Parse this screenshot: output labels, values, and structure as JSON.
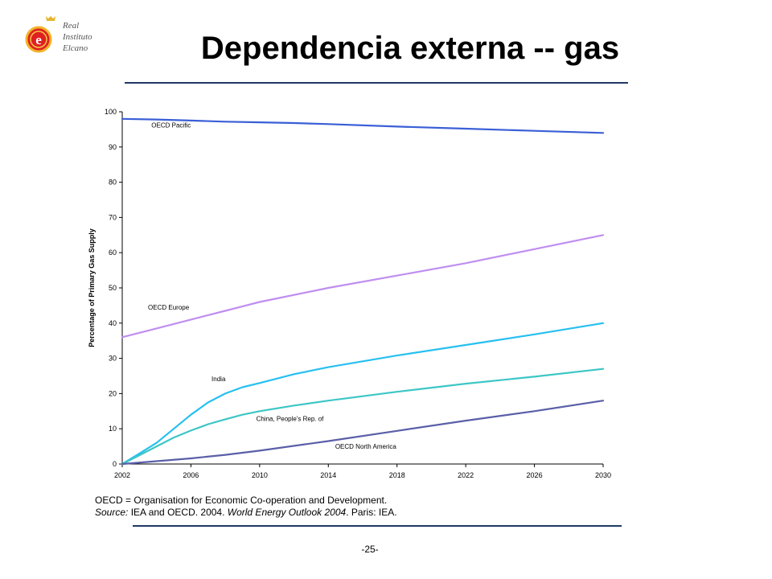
{
  "logo": {
    "line1": "Real",
    "line2": "Instituto",
    "line3": "Elcano",
    "letter": "e"
  },
  "slide": {
    "title": "Dependencia externa -- gas",
    "page_number": "-25-"
  },
  "notes": {
    "definition": "OECD = Organisation for Economic Co-operation and Development.",
    "source_label": "Source:",
    "source_text_a": " IEA and OECD. 2004. ",
    "source_title": "World Energy Outlook 2004",
    "source_text_b": ". Paris: IEA."
  },
  "chart_data": {
    "type": "line",
    "ylabel": "Percentage of Primary Gas Supply",
    "xlabel": "",
    "xlim": [
      2002,
      2030
    ],
    "ylim": [
      0,
      100
    ],
    "x_ticks": [
      2002,
      2006,
      2010,
      2014,
      2018,
      2022,
      2026,
      2030
    ],
    "y_ticks": [
      0,
      10,
      20,
      30,
      40,
      50,
      60,
      70,
      80,
      90,
      100
    ],
    "grid": false,
    "legend": "inline labels",
    "series": [
      {
        "name": "OECD Pacific",
        "color": "#3a5fd6",
        "x": [
          2002,
          2004,
          2006,
          2008,
          2010,
          2012,
          2014,
          2018,
          2022,
          2026,
          2030
        ],
        "values": [
          98,
          97.8,
          97.5,
          97.2,
          97,
          96.8,
          96.5,
          95.8,
          95.2,
          94.6,
          94
        ]
      },
      {
        "name": "OECD Europe",
        "color": "#c08ef0",
        "x": [
          2002,
          2004,
          2006,
          2008,
          2010,
          2014,
          2018,
          2022,
          2026,
          2030
        ],
        "values": [
          36,
          38.5,
          41,
          43.5,
          46,
          50,
          53.5,
          57,
          61,
          65
        ]
      },
      {
        "name": "India",
        "color": "#27c0f0",
        "x": [
          2002,
          2003,
          2004,
          2005,
          2006,
          2007,
          2008,
          2009,
          2010,
          2012,
          2014,
          2018,
          2022,
          2026,
          2030
        ],
        "values": [
          0,
          3,
          6,
          10,
          14,
          17.5,
          20,
          21.8,
          23,
          25.5,
          27.5,
          30.8,
          33.8,
          36.8,
          40
        ]
      },
      {
        "name": "China, People's Rep. of",
        "color": "#3ec6c6",
        "x": [
          2002,
          2003,
          2004,
          2005,
          2006,
          2007,
          2008,
          2009,
          2010,
          2012,
          2014,
          2018,
          2022,
          2026,
          2030
        ],
        "values": [
          0,
          2.5,
          5,
          7.5,
          9.5,
          11.3,
          12.7,
          14,
          15,
          16.6,
          18,
          20.5,
          22.8,
          24.8,
          27
        ]
      },
      {
        "name": "OECD North America",
        "color": "#5a5fa8",
        "x": [
          2002,
          2004,
          2006,
          2008,
          2010,
          2014,
          2018,
          2022,
          2026,
          2030
        ],
        "values": [
          0,
          0.8,
          1.6,
          2.6,
          3.8,
          6.5,
          9.4,
          12.3,
          15,
          18
        ]
      }
    ],
    "annotations": [
      {
        "text": "OECD Pacific",
        "x": 2003.7,
        "y": 95.5
      },
      {
        "text": "OECD Europe",
        "x": 2003.5,
        "y": 43.8
      },
      {
        "text": "India",
        "x": 2007.2,
        "y": 23.5
      },
      {
        "text": "China, People's Rep. of",
        "x": 2009.8,
        "y": 12.2
      },
      {
        "text": "OECD North America",
        "x": 2014.4,
        "y": 4.3
      }
    ]
  }
}
